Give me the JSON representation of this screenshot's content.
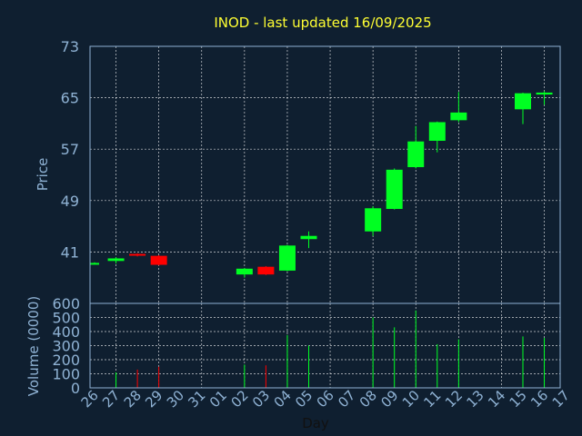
{
  "chart_data": {
    "type": "candlestick",
    "title": "INOD - last updated 16/09/2025",
    "price_ylabel": "Price",
    "volume_ylabel": "Volume (0000)",
    "xlabel": "Day",
    "price_ticks": [
      "73",
      "65",
      "57",
      "49",
      "41"
    ],
    "price_ylim": [
      33,
      73
    ],
    "volume_ticks": [
      "600",
      "500",
      "400",
      "300",
      "200",
      "100",
      "0"
    ],
    "volume_ylim": [
      0,
      600
    ],
    "x_labels": [
      "26",
      "27",
      "28",
      "29",
      "30",
      "31",
      "01",
      "02",
      "03",
      "04",
      "05",
      "06",
      "07",
      "08",
      "09",
      "10",
      "11",
      "12",
      "13",
      "14",
      "15",
      "16",
      "17"
    ],
    "candles": [
      {
        "day": "26",
        "open": 39.3,
        "close": 39.3,
        "high": 39.4,
        "low": 39.2,
        "volume": 0
      },
      {
        "day": "27",
        "open": 39.6,
        "close": 40.0,
        "high": 40.2,
        "low": 39.2,
        "volume": 110
      },
      {
        "day": "28",
        "open": 40.7,
        "close": 40.5,
        "high": 40.8,
        "low": 40.3,
        "volume": 130
      },
      {
        "day": "29",
        "open": 40.4,
        "close": 39.0,
        "high": 40.5,
        "low": 38.9,
        "volume": 150
      },
      {
        "day": "02",
        "open": 37.5,
        "close": 38.4,
        "high": 38.5,
        "low": 37.0,
        "volume": 165
      },
      {
        "day": "03",
        "open": 38.7,
        "close": 37.5,
        "high": 38.8,
        "low": 37.4,
        "volume": 160
      },
      {
        "day": "04",
        "open": 38.1,
        "close": 42.0,
        "high": 42.1,
        "low": 38.0,
        "volume": 375
      },
      {
        "day": "05",
        "open": 43.0,
        "close": 43.5,
        "high": 44.2,
        "low": 41.6,
        "volume": 300
      },
      {
        "day": "08",
        "open": 44.2,
        "close": 47.8,
        "high": 48.1,
        "low": 43.5,
        "volume": 500
      },
      {
        "day": "09",
        "open": 47.7,
        "close": 53.8,
        "high": 54.0,
        "low": 47.6,
        "volume": 430
      },
      {
        "day": "10",
        "open": 54.2,
        "close": 58.2,
        "high": 60.6,
        "low": 54.0,
        "volume": 550
      },
      {
        "day": "11",
        "open": 58.3,
        "close": 61.2,
        "high": 61.3,
        "low": 56.5,
        "volume": 310
      },
      {
        "day": "12",
        "open": 61.5,
        "close": 62.7,
        "high": 65.9,
        "low": 61.2,
        "volume": 345
      },
      {
        "day": "15",
        "open": 63.2,
        "close": 65.7,
        "high": 65.8,
        "low": 60.9,
        "volume": 365
      },
      {
        "day": "16",
        "open": 65.5,
        "close": 65.8,
        "high": 66.0,
        "low": 63.9,
        "volume": 355
      }
    ],
    "colors": {
      "up": "#00ff22",
      "down": "#ff0000",
      "grid": "#ffffff",
      "axis": "#8fb2d4",
      "background": "#0f1f30",
      "title": "#ffff33"
    },
    "grid": true
  }
}
